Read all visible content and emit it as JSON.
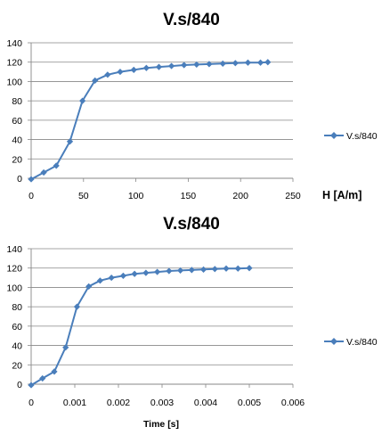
{
  "colors": {
    "series": "#4a7ebb",
    "grid": "#878787",
    "axis": "#878787"
  },
  "chart_data": [
    {
      "type": "line",
      "title": "V.s/840",
      "xlabel": "H [A/m]",
      "ylabel": "",
      "xlim": [
        0,
        250
      ],
      "ylim": [
        0,
        140
      ],
      "xticks": [
        0,
        50,
        100,
        150,
        200,
        250
      ],
      "yticks": [
        0,
        20,
        40,
        60,
        80,
        100,
        120,
        140
      ],
      "grid": "horizontal",
      "legend_position": "right",
      "series": [
        {
          "name": "V.s/840",
          "marker": "diamond",
          "x": [
            0,
            12,
            24,
            37,
            49,
            61,
            73,
            85,
            98,
            110,
            122,
            134,
            146,
            158,
            170,
            183,
            195,
            207,
            219,
            226
          ],
          "y": [
            -1,
            6,
            13,
            38,
            80,
            101,
            107,
            110,
            112,
            114,
            115,
            116,
            117,
            117.5,
            118,
            118.5,
            119,
            119.5,
            119.5,
            120
          ]
        }
      ]
    },
    {
      "type": "line",
      "title": "V.s/840",
      "xlabel": "Time [s]",
      "ylabel": "",
      "xlim": [
        0,
        0.006
      ],
      "ylim": [
        0,
        140
      ],
      "xticks": [
        0,
        0.001,
        0.002,
        0.003,
        0.004,
        0.005,
        0.006
      ],
      "xtick_labels": [
        "0",
        "0.001",
        "0.002",
        "0.003",
        "0.004",
        "0.005",
        "0.006"
      ],
      "yticks": [
        0,
        20,
        40,
        60,
        80,
        100,
        120,
        140
      ],
      "grid": "horizontal",
      "legend_position": "right",
      "series": [
        {
          "name": "V.s/840",
          "marker": "diamond",
          "x": [
            0,
            0.00026,
            0.00053,
            0.00079,
            0.00105,
            0.00132,
            0.00158,
            0.00184,
            0.00211,
            0.00237,
            0.00263,
            0.00289,
            0.00316,
            0.00342,
            0.00368,
            0.00395,
            0.00421,
            0.00447,
            0.00474,
            0.005
          ],
          "y": [
            -1,
            6,
            13,
            38,
            80,
            101,
            107,
            110,
            112,
            114,
            115,
            116,
            117,
            117.5,
            118,
            118.5,
            119,
            119.5,
            119.5,
            120
          ]
        }
      ]
    }
  ]
}
